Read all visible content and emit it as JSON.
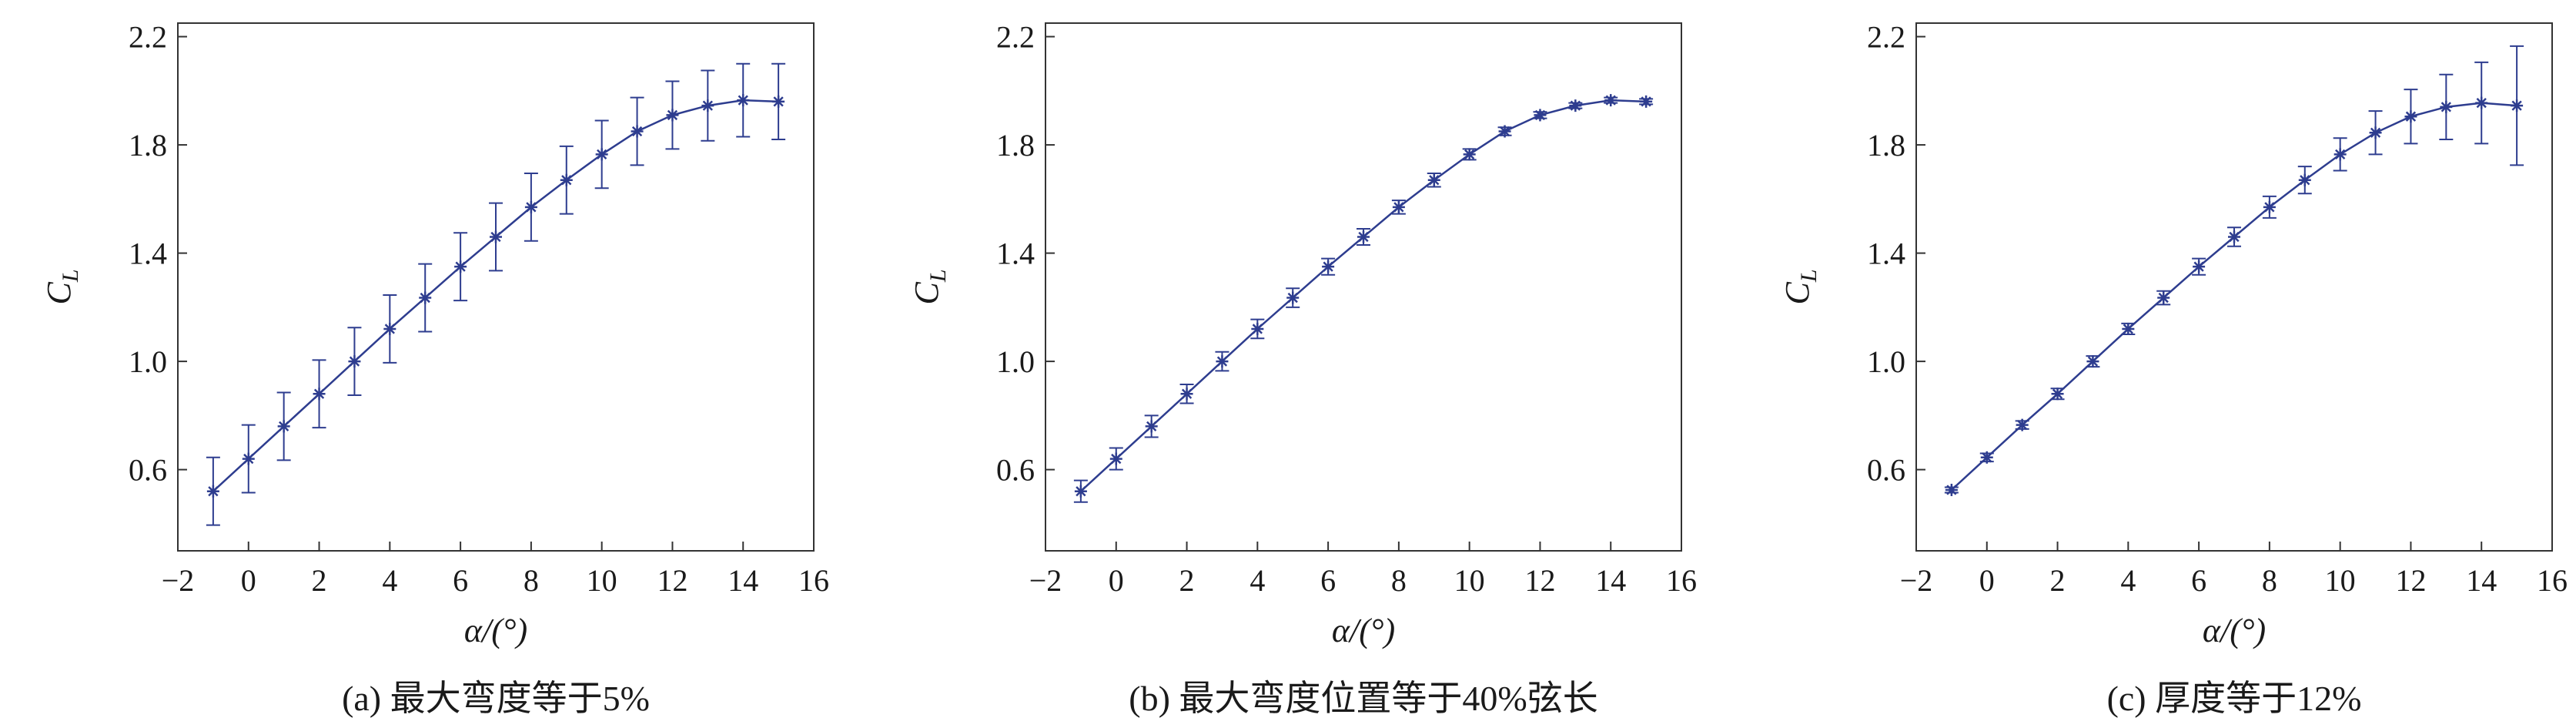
{
  "chart_data": [
    {
      "type": "line",
      "caption": "(a) 最大弯度等于5%",
      "xlabel": "α/(°)",
      "ylabel_main": "C",
      "ylabel_sub": "L",
      "xlim": [
        -2,
        16
      ],
      "ylim": [
        0.3,
        2.25
      ],
      "xticks": [
        -2,
        0,
        2,
        4,
        6,
        8,
        10,
        12,
        14,
        16
      ],
      "xtick_labels": [
        "−2",
        "0",
        "2",
        "4",
        "6",
        "8",
        "10",
        "12",
        "14",
        "16"
      ],
      "yticks": [
        0.6,
        1.0,
        1.4,
        1.8,
        2.2
      ],
      "ytick_labels": [
        "0.6",
        "1.0",
        "1.4",
        "1.8",
        "2.2"
      ],
      "grid": false,
      "color": "#2e3d8f",
      "series": [
        {
          "x": [
            -1,
            0,
            1,
            2,
            3,
            4,
            5,
            6,
            7,
            8,
            9,
            10,
            11,
            12,
            13,
            14,
            15
          ],
          "y": [
            0.52,
            0.64,
            0.76,
            0.88,
            1.0,
            1.12,
            1.235,
            1.35,
            1.46,
            1.57,
            1.67,
            1.765,
            1.85,
            1.91,
            1.945,
            1.965,
            1.96
          ],
          "err": [
            0.125,
            0.125,
            0.125,
            0.125,
            0.125,
            0.125,
            0.125,
            0.125,
            0.125,
            0.125,
            0.125,
            0.125,
            0.125,
            0.125,
            0.13,
            0.135,
            0.14
          ]
        }
      ]
    },
    {
      "type": "line",
      "caption": "(b) 最大弯度位置等于40%弦长",
      "xlabel": "α/(°)",
      "ylabel_main": "C",
      "ylabel_sub": "L",
      "xlim": [
        -2,
        16
      ],
      "ylim": [
        0.3,
        2.25
      ],
      "xticks": [
        -2,
        0,
        2,
        4,
        6,
        8,
        10,
        12,
        14,
        16
      ],
      "xtick_labels": [
        "−2",
        "0",
        "2",
        "4",
        "6",
        "8",
        "10",
        "12",
        "14",
        "16"
      ],
      "yticks": [
        0.6,
        1.0,
        1.4,
        1.8,
        2.2
      ],
      "ytick_labels": [
        "0.6",
        "1.0",
        "1.4",
        "1.8",
        "2.2"
      ],
      "grid": false,
      "color": "#2e3d8f",
      "series": [
        {
          "x": [
            -1,
            0,
            1,
            2,
            3,
            4,
            5,
            6,
            7,
            8,
            9,
            10,
            11,
            12,
            13,
            14,
            15
          ],
          "y": [
            0.52,
            0.64,
            0.76,
            0.88,
            1.0,
            1.12,
            1.235,
            1.35,
            1.46,
            1.57,
            1.67,
            1.765,
            1.85,
            1.91,
            1.945,
            1.965,
            1.96
          ],
          "err": [
            0.04,
            0.04,
            0.04,
            0.035,
            0.035,
            0.035,
            0.035,
            0.03,
            0.03,
            0.025,
            0.025,
            0.02,
            0.015,
            0.012,
            0.01,
            0.01,
            0.01
          ]
        }
      ]
    },
    {
      "type": "line",
      "caption": "(c) 厚度等于12%",
      "xlabel": "α/(°)",
      "ylabel_main": "C",
      "ylabel_sub": "L",
      "xlim": [
        -2,
        16
      ],
      "ylim": [
        0.3,
        2.25
      ],
      "xticks": [
        -2,
        0,
        2,
        4,
        6,
        8,
        10,
        12,
        14,
        16
      ],
      "xtick_labels": [
        "−2",
        "0",
        "2",
        "4",
        "6",
        "8",
        "10",
        "12",
        "14",
        "16"
      ],
      "yticks": [
        0.6,
        1.0,
        1.4,
        1.8,
        2.2
      ],
      "ytick_labels": [
        "0.6",
        "1.0",
        "1.4",
        "1.8",
        "2.2"
      ],
      "grid": false,
      "color": "#2e3d8f",
      "series": [
        {
          "x": [
            -1,
            0,
            1,
            2,
            3,
            4,
            5,
            6,
            7,
            8,
            9,
            10,
            11,
            12,
            13,
            14,
            15
          ],
          "y": [
            0.525,
            0.645,
            0.765,
            0.88,
            1.0,
            1.12,
            1.235,
            1.35,
            1.46,
            1.57,
            1.67,
            1.765,
            1.845,
            1.905,
            1.94,
            1.955,
            1.945
          ],
          "err": [
            0.01,
            0.015,
            0.015,
            0.02,
            0.02,
            0.02,
            0.025,
            0.03,
            0.035,
            0.04,
            0.05,
            0.06,
            0.08,
            0.1,
            0.12,
            0.15,
            0.22
          ]
        }
      ]
    }
  ]
}
